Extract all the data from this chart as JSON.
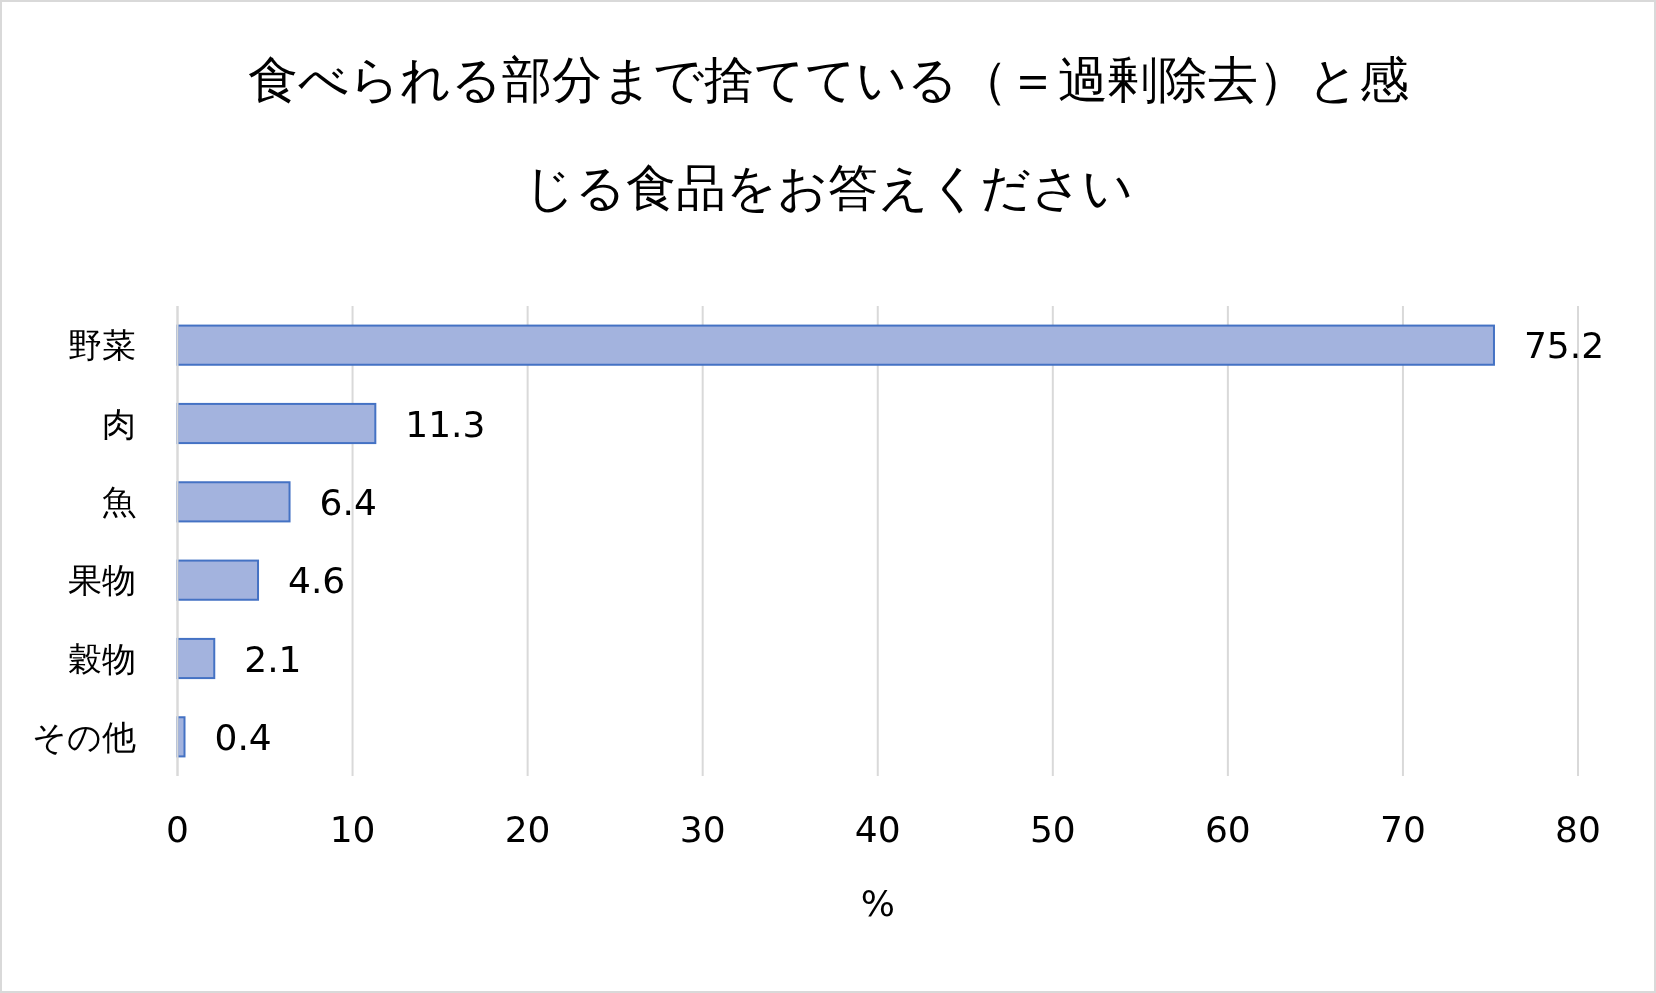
{
  "chart_data": {
    "type": "bar",
    "orientation": "horizontal",
    "title": "食べられる部分まで捨てている（＝過剰除去）と感じる食品をお答えください",
    "xlabel": "%",
    "categories": [
      "野菜",
      "肉",
      "魚",
      "果物",
      "穀物",
      "その他"
    ],
    "values": [
      75.2,
      11.3,
      6.4,
      4.6,
      2.1,
      0.4
    ],
    "color": "#a3b3de",
    "xlim": [
      0,
      80
    ],
    "xticks": [
      0,
      10,
      20,
      30,
      40,
      50,
      60,
      70,
      80
    ],
    "grid": "x",
    "data_labels": true
  }
}
